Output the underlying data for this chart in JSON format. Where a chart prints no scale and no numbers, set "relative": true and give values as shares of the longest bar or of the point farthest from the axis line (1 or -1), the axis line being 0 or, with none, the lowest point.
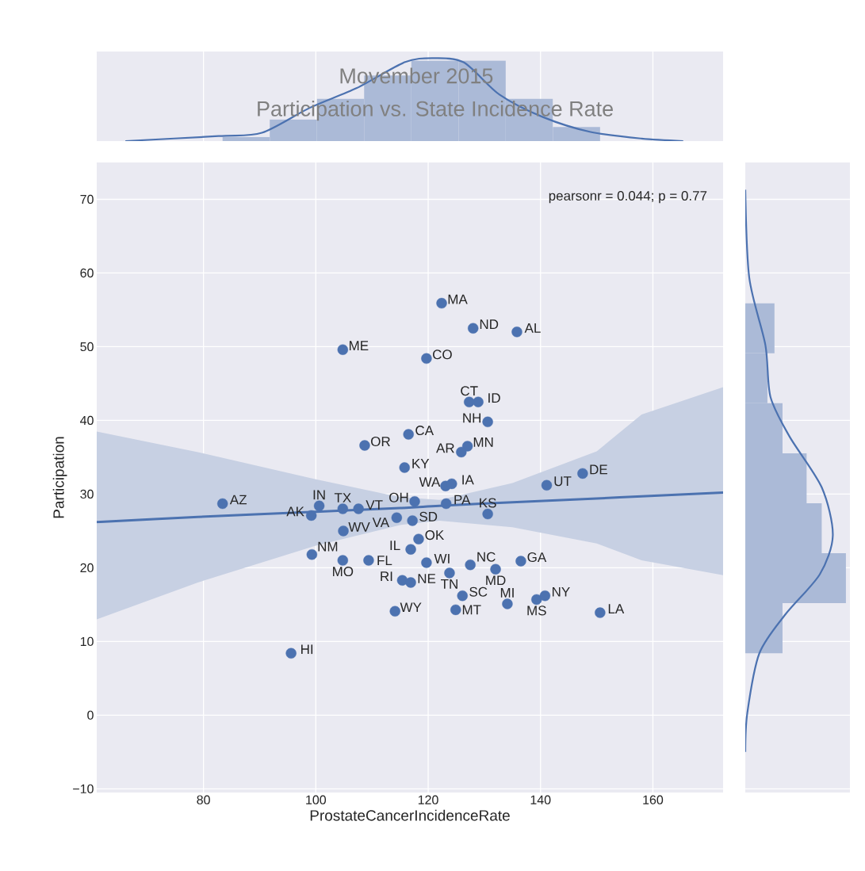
{
  "chart_data": [
    {
      "type": "histogram",
      "title": "Movember 2015",
      "subtitle": "Participation vs. State Incidence Rate",
      "relative": true,
      "color": "#abbad7",
      "bins": [
        83.4,
        91.8,
        100.2,
        108.6,
        117.0,
        125.4,
        133.8,
        142.2,
        150.6
      ],
      "values": [
        0.05,
        0.26,
        0.51,
        0.79,
        0.97,
        0.97,
        0.51,
        0.17
      ],
      "series": [
        {
          "type": "line",
          "color": "#4c72b0",
          "x": [
            66.1,
            82.7,
            90.4,
            98.9,
            107.3,
            115.8,
            120.7,
            126.3,
            132.7,
            140.4,
            148.9,
            158.0,
            165.4
          ],
          "values": [
            0.0,
            0.06,
            0.1,
            0.4,
            0.64,
            0.95,
            1.0,
            0.95,
            0.56,
            0.29,
            0.11,
            0.03,
            0.0
          ]
        }
      ],
      "xlim": [
        61,
        172.5
      ],
      "xticks": [
        80,
        100,
        120,
        140,
        160
      ],
      "tick_labels": false,
      "grid": "x"
    },
    {
      "type": "scatter",
      "xlabel": "ProstateCancerIncidenceRate",
      "ylabel": "Participation",
      "xlim": [
        61,
        172.5
      ],
      "ylim": [
        -10.5,
        75
      ],
      "xticks": [
        80,
        100,
        120,
        140,
        160
      ],
      "yticks": [
        {
          "value": -10,
          "label": "−10"
        },
        0,
        10,
        20,
        30,
        40,
        50,
        60,
        70
      ],
      "grid": true,
      "series": [
        {
          "type": "scatter",
          "marker": "circle",
          "color": "#4c72b0",
          "x": [
            122.4,
            128.0,
            135.8,
            104.8,
            119.7,
            127.3,
            128.9,
            130.6,
            116.5,
            108.7,
            127.0,
            125.9,
            115.8,
            147.5,
            141.1,
            123.1,
            124.2,
            117.6,
            123.2,
            130.6,
            83.4,
            100.6,
            99.2,
            104.8,
            107.6,
            104.9,
            114.4,
            117.2,
            118.3,
            116.9,
            99.3,
            104.8,
            109.4,
            119.7,
            115.4,
            116.9,
            123.8,
            127.5,
            132.0,
            136.5,
            126.1,
            124.9,
            134.1,
            139.3,
            140.8,
            150.6,
            114.1,
            95.6
          ],
          "values": [
            55.9,
            52.5,
            52.0,
            49.6,
            48.4,
            42.5,
            42.5,
            39.8,
            38.1,
            36.6,
            36.5,
            35.7,
            33.6,
            32.8,
            31.2,
            31.1,
            31.4,
            29.0,
            28.7,
            27.3,
            28.7,
            28.4,
            27.1,
            28.0,
            28.0,
            25.0,
            26.8,
            26.4,
            23.9,
            22.5,
            21.8,
            21.0,
            21.0,
            20.7,
            18.3,
            18.0,
            19.3,
            20.4,
            19.8,
            20.9,
            16.2,
            14.3,
            15.1,
            15.7,
            16.2,
            13.9,
            14.1,
            8.4
          ]
        },
        {
          "type": "line",
          "color": "#4c72b0",
          "line_style": "solid",
          "x": [
            61,
            79,
            100,
            115,
            122,
            135,
            150,
            158,
            172.5
          ],
          "values": [
            26.2,
            26.9,
            27.6,
            28.1,
            28.4,
            28.9,
            29.4,
            29.7,
            30.2
          ],
          "lower": [
            13.0,
            18.0,
            23.0,
            25.8,
            26.4,
            25.5,
            23.3,
            21.0,
            19.0
          ],
          "upper": [
            38.5,
            35.7,
            32.0,
            29.6,
            29.2,
            31.5,
            35.8,
            40.8,
            44.5
          ]
        }
      ],
      "annotations": [
        "pearsonr = 0.044; p = 0.77",
        {
          "text": "MA",
          "x": 122.4,
          "y": 55.9
        },
        {
          "text": "ND",
          "x": 128.0,
          "y": 52.5
        },
        {
          "text": "AL",
          "x": 135.8,
          "y": 52.0
        },
        {
          "text": "ME",
          "x": 104.8,
          "y": 49.6
        },
        {
          "text": "CO",
          "x": 119.7,
          "y": 48.4
        },
        {
          "text": "CT",
          "x": 127.3,
          "y": 42.5
        },
        {
          "text": "ID",
          "x": 128.9,
          "y": 42.5
        },
        {
          "text": "NH",
          "x": 130.6,
          "y": 39.8
        },
        {
          "text": "CA",
          "x": 116.5,
          "y": 38.1
        },
        {
          "text": "OR",
          "x": 108.7,
          "y": 36.6
        },
        {
          "text": "MN",
          "x": 127.0,
          "y": 36.5
        },
        {
          "text": "AR",
          "x": 125.9,
          "y": 35.7
        },
        {
          "text": "KY",
          "x": 115.8,
          "y": 33.6
        },
        {
          "text": "DE",
          "x": 147.5,
          "y": 32.8
        },
        {
          "text": "UT",
          "x": 141.1,
          "y": 31.2
        },
        {
          "text": "WA",
          "x": 123.1,
          "y": 31.1
        },
        {
          "text": "IA",
          "x": 124.2,
          "y": 31.4
        },
        {
          "text": "OH",
          "x": 117.6,
          "y": 29.0
        },
        {
          "text": "PA",
          "x": 123.2,
          "y": 28.7
        },
        {
          "text": "KS",
          "x": 130.6,
          "y": 27.3
        },
        {
          "text": "AZ",
          "x": 83.4,
          "y": 28.7
        },
        {
          "text": "IN",
          "x": 100.6,
          "y": 28.4
        },
        {
          "text": "AK",
          "x": 99.2,
          "y": 27.1
        },
        {
          "text": "TX",
          "x": 104.8,
          "y": 28.0
        },
        {
          "text": "VT",
          "x": 107.6,
          "y": 28.0
        },
        {
          "text": "WV",
          "x": 104.9,
          "y": 25.0
        },
        {
          "text": "VA",
          "x": 114.4,
          "y": 26.8
        },
        {
          "text": "SD",
          "x": 117.2,
          "y": 26.4
        },
        {
          "text": "OK",
          "x": 118.3,
          "y": 23.9
        },
        {
          "text": "IL",
          "x": 116.9,
          "y": 22.5
        },
        {
          "text": "NM",
          "x": 99.3,
          "y": 21.8
        },
        {
          "text": "MO",
          "x": 104.8,
          "y": 21.0
        },
        {
          "text": "FL",
          "x": 109.4,
          "y": 21.0
        },
        {
          "text": "WI",
          "x": 119.7,
          "y": 20.7
        },
        {
          "text": "RI",
          "x": 115.4,
          "y": 18.3
        },
        {
          "text": "NE",
          "x": 116.9,
          "y": 18.0
        },
        {
          "text": "TN",
          "x": 123.8,
          "y": 19.3
        },
        {
          "text": "NC",
          "x": 127.5,
          "y": 20.4
        },
        {
          "text": "MD",
          "x": 132.0,
          "y": 19.8
        },
        {
          "text": "GA",
          "x": 136.5,
          "y": 20.9
        },
        {
          "text": "SC",
          "x": 126.1,
          "y": 16.2
        },
        {
          "text": "MT",
          "x": 124.9,
          "y": 14.3
        },
        {
          "text": "MI",
          "x": 134.1,
          "y": 15.1
        },
        {
          "text": "MS",
          "x": 139.3,
          "y": 15.7
        },
        {
          "text": "NY",
          "x": 140.8,
          "y": 16.2
        },
        {
          "text": "LA",
          "x": 150.6,
          "y": 13.9
        },
        {
          "text": "WY",
          "x": 114.1,
          "y": 14.1
        },
        {
          "text": "HI",
          "x": 95.6,
          "y": 8.4
        }
      ]
    },
    {
      "type": "histogram",
      "orientation": "horizontal",
      "relative": true,
      "color": "#abbad7",
      "bins": [
        8.4,
        15.19,
        21.97,
        28.76,
        35.54,
        42.33,
        49.11,
        55.9
      ],
      "values": [
        0.37,
        1.0,
        0.76,
        0.61,
        0.37,
        0.22,
        0.29
      ],
      "series": [
        {
          "type": "line",
          "color": "#4c72b0",
          "x": [
            71.3,
            59.3,
            50.2,
            43.2,
            37.8,
            30.9,
            24.4,
            19.1,
            13.7,
            8.4,
            0.3,
            -5.0
          ],
          "values": [
            0.0,
            0.04,
            0.2,
            0.25,
            0.44,
            0.76,
            0.87,
            0.74,
            0.4,
            0.14,
            0.02,
            0.0
          ]
        }
      ],
      "ylim": [
        -10.5,
        75
      ],
      "yticks": [
        -10,
        0,
        10,
        20,
        30,
        40,
        50,
        60,
        70
      ],
      "tick_labels": false,
      "grid": "y"
    }
  ]
}
